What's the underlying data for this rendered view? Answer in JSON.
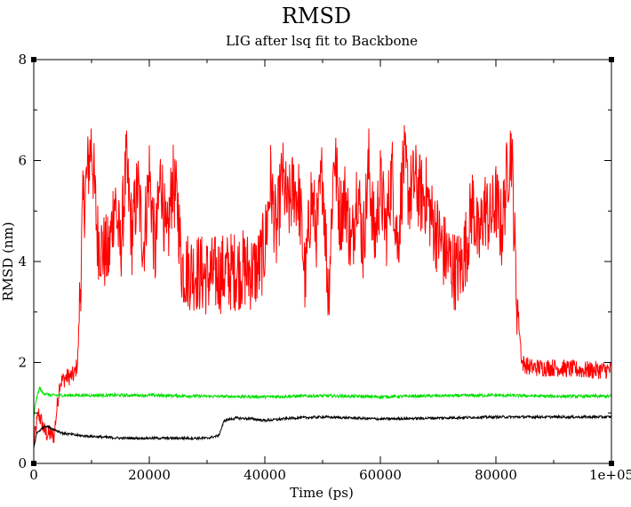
{
  "chart_data": {
    "type": "line",
    "title": "RMSD",
    "subtitle": "LIG after lsq fit to Backbone",
    "xlabel": "Time (ps)",
    "ylabel": "RMSD (nm)",
    "xlim": [
      0,
      100000
    ],
    "ylim": [
      0,
      8
    ],
    "grid": false,
    "x_ticks": [
      0,
      20000,
      40000,
      60000,
      80000,
      100000
    ],
    "x_tick_labels": [
      "0",
      "20000",
      "40000",
      "60000",
      "80000",
      "1e+05"
    ],
    "y_ticks": [
      0,
      2,
      4,
      6,
      8
    ],
    "y_tick_labels": [
      "0",
      "2",
      "4",
      "6",
      "8"
    ],
    "series": [
      {
        "color": "#ff0000",
        "noise": 0.18,
        "x": [
          0,
          800,
          2000,
          3500,
          4500,
          5500,
          7000,
          7600,
          8500,
          10000,
          11000,
          12000,
          13000,
          14000,
          15000,
          16000,
          17000,
          18000,
          19000,
          20000,
          21000,
          22000,
          23000,
          24000,
          25000,
          25500,
          26000,
          28000,
          30000,
          32000,
          34000,
          36000,
          38000,
          39000,
          40000,
          41000,
          42000,
          43000,
          44000,
          45000,
          46000,
          47000,
          48000,
          49000,
          50000,
          51000,
          52000,
          53000,
          54000,
          55000,
          56000,
          57000,
          58000,
          59000,
          60000,
          61000,
          62000,
          63000,
          64000,
          65000,
          66000,
          67000,
          68000,
          69000,
          70000,
          71000,
          72000,
          73000,
          74000,
          75000,
          76000,
          77000,
          78000,
          79000,
          80000,
          81000,
          82000,
          82700,
          83500,
          84500,
          86000,
          90000,
          95000,
          100000
        ],
        "y": [
          0.4,
          1.0,
          0.6,
          0.55,
          1.6,
          1.7,
          1.75,
          2.0,
          5.0,
          6.4,
          4.5,
          4.2,
          4.1,
          5.3,
          4.2,
          5.9,
          4.5,
          5.5,
          4.3,
          5.8,
          4.1,
          5.8,
          4.2,
          5.6,
          5.0,
          4.0,
          3.85,
          3.8,
          3.7,
          3.75,
          3.8,
          3.85,
          3.8,
          3.9,
          4.3,
          5.6,
          4.5,
          5.7,
          5.0,
          5.5,
          5.2,
          3.6,
          5.3,
          4.6,
          5.8,
          3.3,
          6.2,
          4.9,
          5.3,
          4.2,
          5.6,
          4.3,
          5.9,
          4.4,
          5.5,
          4.6,
          5.8,
          4.3,
          6.0,
          5.3,
          5.6,
          5.3,
          5.3,
          4.8,
          4.5,
          4.2,
          4.0,
          3.8,
          3.9,
          4.4,
          5.2,
          4.3,
          5.1,
          4.8,
          5.2,
          4.6,
          5.8,
          6.3,
          3.5,
          2.0,
          1.9,
          1.9,
          1.85,
          1.85
        ]
      },
      {
        "color": "#00e000",
        "noise": 0.03,
        "x": [
          0,
          300,
          1000,
          1500,
          3000,
          10000,
          20000,
          30000,
          40000,
          50000,
          60000,
          70000,
          80000,
          90000,
          100000
        ],
        "y": [
          0.9,
          1.2,
          1.5,
          1.4,
          1.35,
          1.35,
          1.35,
          1.33,
          1.32,
          1.34,
          1.32,
          1.34,
          1.35,
          1.33,
          1.33
        ]
      },
      {
        "color": "#000000",
        "noise": 0.025,
        "x": [
          0,
          500,
          2000,
          5000,
          8000,
          15000,
          20000,
          25000,
          30000,
          32000,
          33000,
          35000,
          38000,
          40000,
          45000,
          50000,
          60000,
          70000,
          80000,
          90000,
          100000
        ],
        "y": [
          0.3,
          0.6,
          0.75,
          0.6,
          0.55,
          0.5,
          0.5,
          0.5,
          0.5,
          0.55,
          0.85,
          0.9,
          0.88,
          0.85,
          0.9,
          0.92,
          0.88,
          0.9,
          0.92,
          0.92,
          0.92
        ]
      }
    ]
  }
}
